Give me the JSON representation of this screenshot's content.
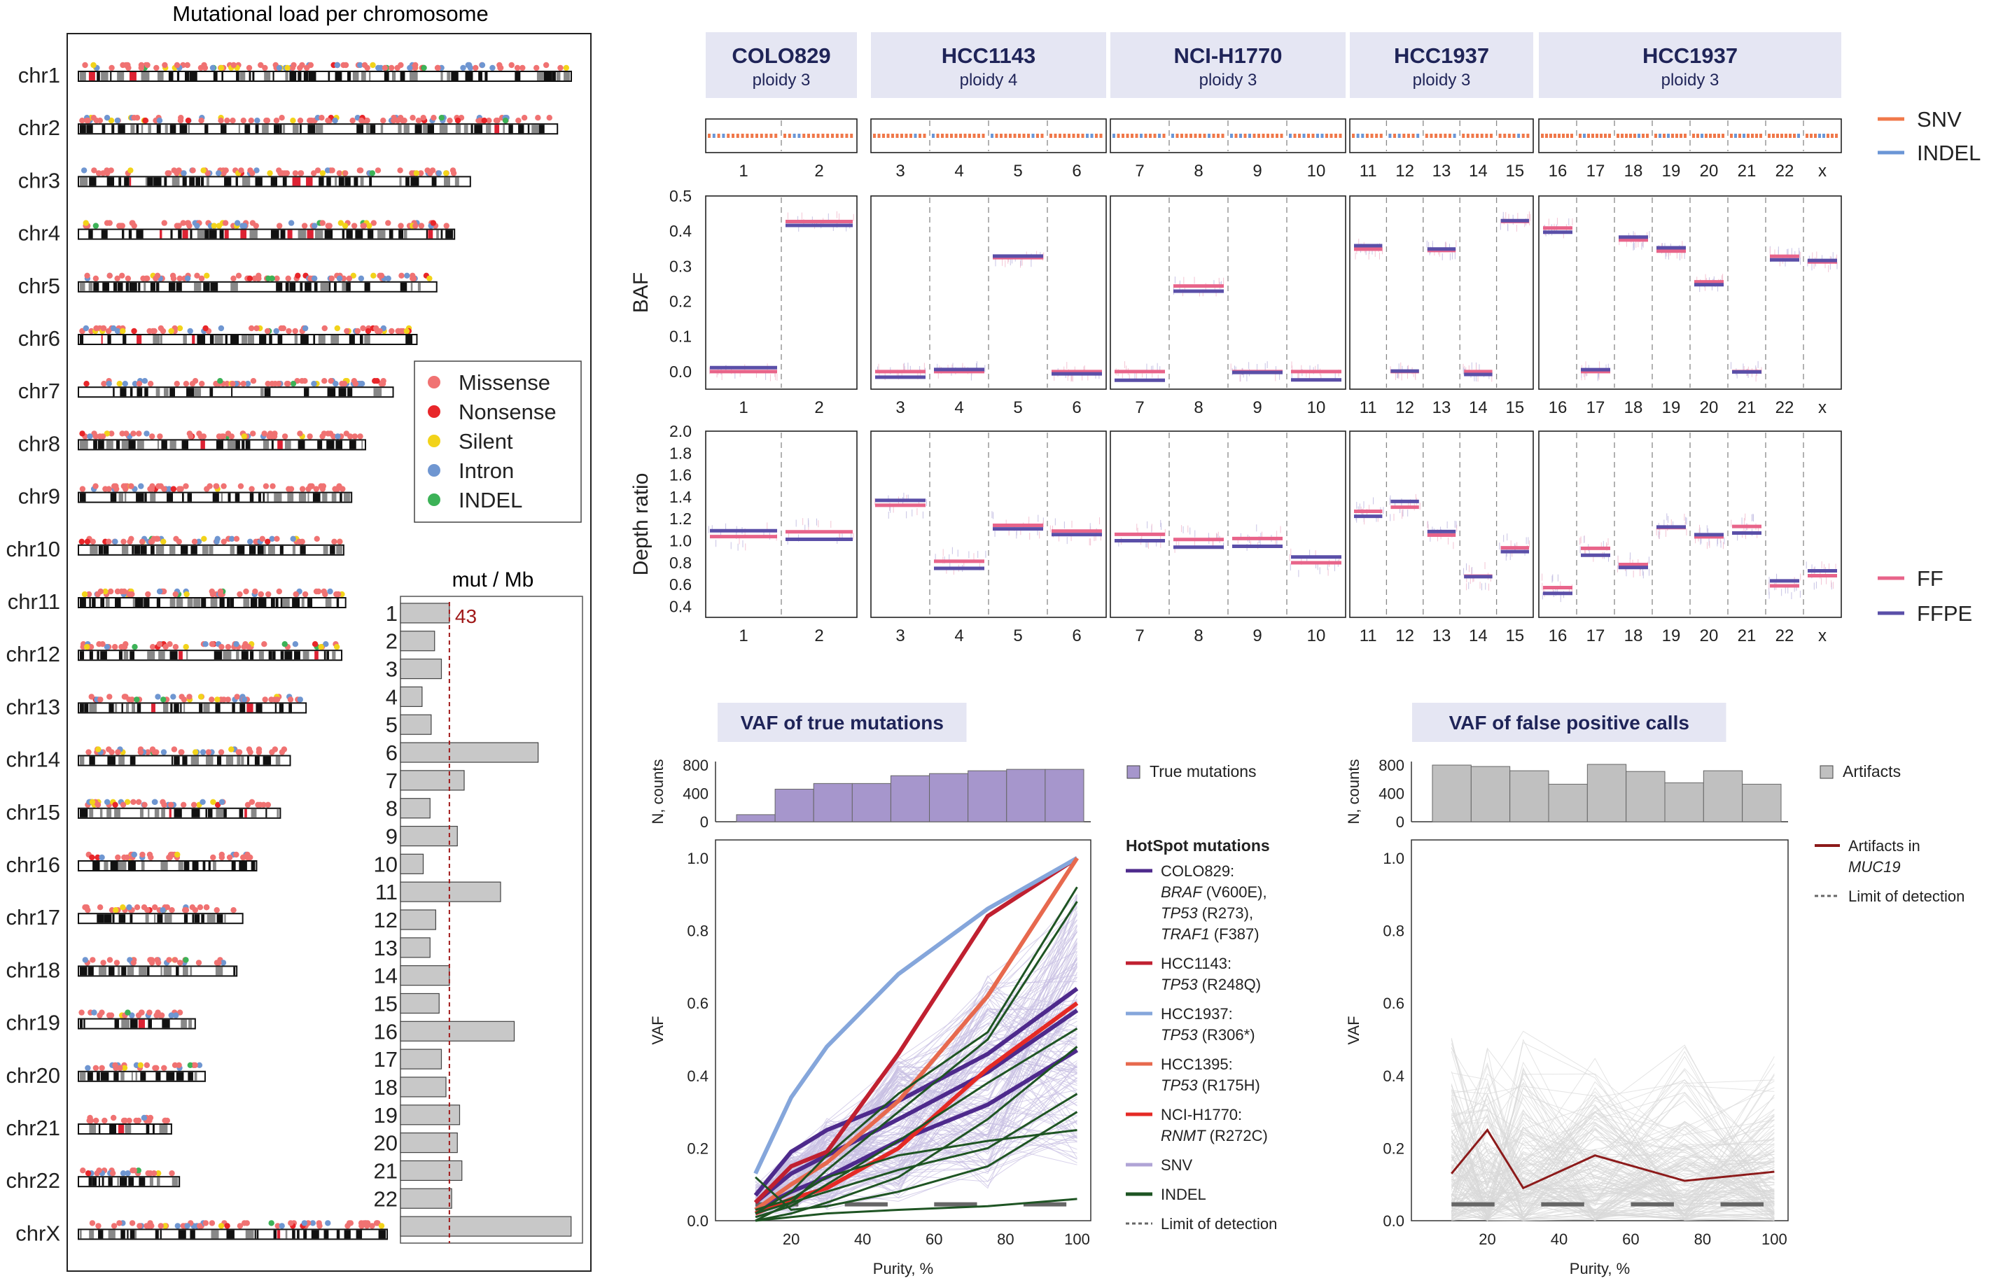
{
  "left_panel": {
    "title": "Mutational load per chromosome",
    "chromosomes": [
      "chr1",
      "chr2",
      "chr3",
      "chr4",
      "chr5",
      "chr6",
      "chr7",
      "chr8",
      "chr9",
      "chr10",
      "chr11",
      "chr12",
      "chr13",
      "chr14",
      "chr15",
      "chr16",
      "chr17",
      "chr18",
      "chr19",
      "chr20",
      "chr21",
      "chr22",
      "chrX"
    ],
    "chrom_length_mb": [
      249,
      242,
      198,
      190,
      181,
      171,
      159,
      145,
      138,
      134,
      135,
      133,
      115,
      107,
      102,
      90,
      83,
      80,
      59,
      64,
      47,
      51,
      156
    ],
    "legend": [
      {
        "label": "Missense",
        "color": "#f07272"
      },
      {
        "label": "Nonsense",
        "color": "#e8262a"
      },
      {
        "label": "Silent",
        "color": "#f2d31a"
      },
      {
        "label": "Intron",
        "color": "#6f96d1"
      },
      {
        "label": "INDEL",
        "color": "#3cb257"
      }
    ],
    "density_chart": {
      "title": "mut / Mb",
      "categories": [
        "1",
        "2",
        "3",
        "4",
        "5",
        "6",
        "7",
        "8",
        "9",
        "10",
        "11",
        "12",
        "13",
        "14",
        "15",
        "16",
        "17",
        "18",
        "19",
        "20",
        "21",
        "22"
      ],
      "values": [
        43,
        30,
        36,
        19,
        27,
        121,
        56,
        26,
        50,
        20,
        88,
        31,
        26,
        43,
        34,
        100,
        36,
        40,
        52,
        50,
        54,
        45
      ],
      "chrX_value": 150,
      "reference_value": 43,
      "reference_label": "43",
      "xlim": [
        0,
        160
      ]
    }
  },
  "cnv_panel": {
    "samples": [
      {
        "name": "COLO829",
        "ploidy": "ploidy 3"
      },
      {
        "name": "HCC1143",
        "ploidy": "ploidy 4"
      },
      {
        "name": "NCI-H1770",
        "ploidy": "ploidy 3"
      },
      {
        "name": "HCC1937",
        "ploidy": "ploidy 3"
      },
      {
        "name": "HCC1937",
        "ploidy": "ploidy 3"
      }
    ],
    "groups": [
      [
        "1",
        "2"
      ],
      [
        "3",
        "4",
        "5",
        "6"
      ],
      [
        "7",
        "8",
        "9",
        "10"
      ],
      [
        "11",
        "12",
        "13",
        "14",
        "15"
      ],
      [
        "16",
        "17",
        "18",
        "19",
        "20",
        "21",
        "22",
        "x"
      ]
    ],
    "track_legend": [
      {
        "label": "SNV",
        "color": "#f0784a"
      },
      {
        "label": "INDEL",
        "color": "#6b96d6"
      }
    ],
    "baf": {
      "ylabel": "BAF",
      "ticks": [
        "0.0",
        "0.1",
        "0.2",
        "0.3",
        "0.4",
        "0.5"
      ],
      "ylim": [
        -0.05,
        0.5
      ]
    },
    "depth": {
      "ylabel": "Depth ratio",
      "ticks": [
        "0.4",
        "0.6",
        "0.8",
        "1.0",
        "1.2",
        "1.4",
        "1.6",
        "1.8",
        "2.0"
      ],
      "ylim": [
        0.3,
        2.0
      ]
    },
    "sample_legend": [
      {
        "label": "FF",
        "color": "#e8648a"
      },
      {
        "label": "FFPE",
        "color": "#5a4fa8"
      }
    ]
  },
  "vaf_true": {
    "badge": "VAF of true mutations",
    "hist_ylabel": "N, counts",
    "hist_ticks": [
      "0",
      "400",
      "800"
    ],
    "hist_legend": "True mutations",
    "hist_color": "#a696cc",
    "hist_values": [
      100,
      460,
      540,
      540,
      650,
      680,
      720,
      740,
      740
    ],
    "ylabel": "VAF",
    "xlabel": "Purity, %",
    "xticks": [
      "20",
      "40",
      "60",
      "80",
      "100"
    ],
    "yticks": [
      "0.0",
      "0.2",
      "0.4",
      "0.6",
      "0.8",
      "1.0"
    ],
    "legend_title": "HotSpot mutations",
    "lod_value": 0.045,
    "x": [
      10,
      20,
      30,
      50,
      75,
      100
    ],
    "series": [
      {
        "name": "COLO829:",
        "italic": "BRAF",
        "rest": " (V600E),",
        "line2_italic": "TP53",
        "line2_rest": " (R273),",
        "line3_italic": "TRAF1",
        "line3_rest": " (F387)",
        "color": "#4e2a8c",
        "lines": [
          [
            0.07,
            0.19,
            0.25,
            0.33,
            0.46,
            0.64
          ],
          [
            0.05,
            0.13,
            0.18,
            0.28,
            0.41,
            0.58
          ],
          [
            0.03,
            0.08,
            0.12,
            0.22,
            0.32,
            0.47
          ]
        ]
      },
      {
        "name": "HCC1143:",
        "italic": "TP53",
        "rest": " (R248Q)",
        "color": "#c02030",
        "lines": [
          [
            0.05,
            0.15,
            0.19,
            0.46,
            0.84,
            1.0
          ]
        ]
      },
      {
        "name": "HCC1937:",
        "italic": "TP53",
        "rest": " (R306*)",
        "color": "#85a6db",
        "lines": [
          [
            0.13,
            0.34,
            0.48,
            0.68,
            0.86,
            1.0
          ]
        ]
      },
      {
        "name": "HCC1395:",
        "italic": "TP53",
        "rest": " (R175H)",
        "color": "#e7694e",
        "lines": [
          [
            0.03,
            0.1,
            0.16,
            0.33,
            0.62,
            1.0
          ]
        ]
      },
      {
        "name": "NCI-H1770:",
        "italic": "RNMT",
        "rest": " (R272C)",
        "color": "#e52a25",
        "lines": [
          [
            0.02,
            0.06,
            0.09,
            0.2,
            0.42,
            0.6
          ]
        ]
      },
      {
        "name": "SNV",
        "color": "#b0a4d6",
        "lines": []
      },
      {
        "name": "INDEL",
        "color": "#1e5423",
        "lines": [
          [
            0.12,
            0.03,
            0.04,
            0.08,
            0.15,
            0.3
          ],
          [
            0.02,
            0.08,
            0.18,
            0.35,
            0.52,
            0.92
          ],
          [
            0.0,
            0.02,
            0.05,
            0.12,
            0.28,
            0.48
          ],
          [
            0.01,
            0.04,
            0.1,
            0.22,
            0.38,
            0.53
          ],
          [
            0.0,
            0.01,
            0.02,
            0.03,
            0.04,
            0.06
          ],
          [
            0.03,
            0.06,
            0.12,
            0.18,
            0.22,
            0.25
          ],
          [
            0.02,
            0.05,
            0.08,
            0.14,
            0.2,
            0.35
          ],
          [
            0.0,
            0.05,
            0.14,
            0.3,
            0.5,
            0.88
          ]
        ]
      }
    ],
    "lod_label": "Limit of detection"
  },
  "vaf_false": {
    "badge": "VAF of false positive calls",
    "hist_ylabel": "N, counts",
    "hist_ticks": [
      "0",
      "400",
      "800"
    ],
    "hist_legend": "Artifacts",
    "hist_color": "#c0c0c0",
    "hist_values": [
      800,
      780,
      720,
      530,
      810,
      710,
      550,
      720,
      530
    ],
    "ylabel": "VAF",
    "xlabel": "Purity, %",
    "xticks": [
      "20",
      "40",
      "60",
      "80",
      "100"
    ],
    "yticks": [
      "0.0",
      "0.2",
      "0.4",
      "0.6",
      "0.8",
      "1.0"
    ],
    "legend_line1": "Artifacts in",
    "legend_line2": "MUC19",
    "lod_label": "Limit of detection",
    "muc19_color": "#8c1a1a",
    "x": [
      10,
      20,
      30,
      50,
      75,
      100
    ],
    "muc19_values": [
      0.13,
      0.25,
      0.09,
      0.18,
      0.11,
      0.135
    ],
    "lod_value": 0.045
  }
}
